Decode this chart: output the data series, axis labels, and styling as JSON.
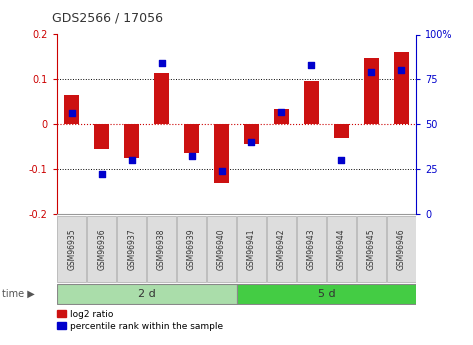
{
  "title": "GDS2566 / 17056",
  "samples": [
    "GSM96935",
    "GSM96936",
    "GSM96937",
    "GSM96938",
    "GSM96939",
    "GSM96940",
    "GSM96941",
    "GSM96942",
    "GSM96943",
    "GSM96944",
    "GSM96945",
    "GSM96946"
  ],
  "log2_ratio": [
    0.065,
    -0.055,
    -0.075,
    0.115,
    -0.065,
    -0.13,
    -0.045,
    0.035,
    0.097,
    -0.03,
    0.148,
    0.16
  ],
  "percentile_rank": [
    56,
    22,
    30,
    84,
    32,
    24,
    40,
    57,
    83,
    30,
    79,
    80
  ],
  "groups": [
    {
      "label": "2 d",
      "start": 0,
      "end": 6,
      "color": "#90EE90"
    },
    {
      "label": "5 d",
      "start": 6,
      "end": 12,
      "color": "#32CD32"
    }
  ],
  "ylim_left": [
    -0.2,
    0.2
  ],
  "ylim_right": [
    0,
    100
  ],
  "yticks_left": [
    -0.2,
    -0.1,
    0.0,
    0.1,
    0.2
  ],
  "yticks_right": [
    0,
    25,
    50,
    75,
    100
  ],
  "ytick_labels_left": [
    "-0.2",
    "-0.1",
    "0",
    "0.1",
    "0.2"
  ],
  "ytick_labels_right": [
    "0",
    "25",
    "50",
    "75",
    "100%"
  ],
  "bar_color": "#CC1111",
  "dot_color": "#0000CC",
  "hline_color": "#CC0000",
  "grid_color": "#000000",
  "bar_width": 0.5,
  "dot_size": 18,
  "label_bg": "#DDDDDD",
  "label_edge": "#AAAAAA",
  "group1_color": "#AADDAA",
  "group2_color": "#44CC44",
  "left_axis_color": "#CC0000",
  "right_axis_color": "#0000CC",
  "title_fontsize": 9,
  "tick_fontsize": 7,
  "sample_fontsize": 5.5,
  "group_fontsize": 8
}
